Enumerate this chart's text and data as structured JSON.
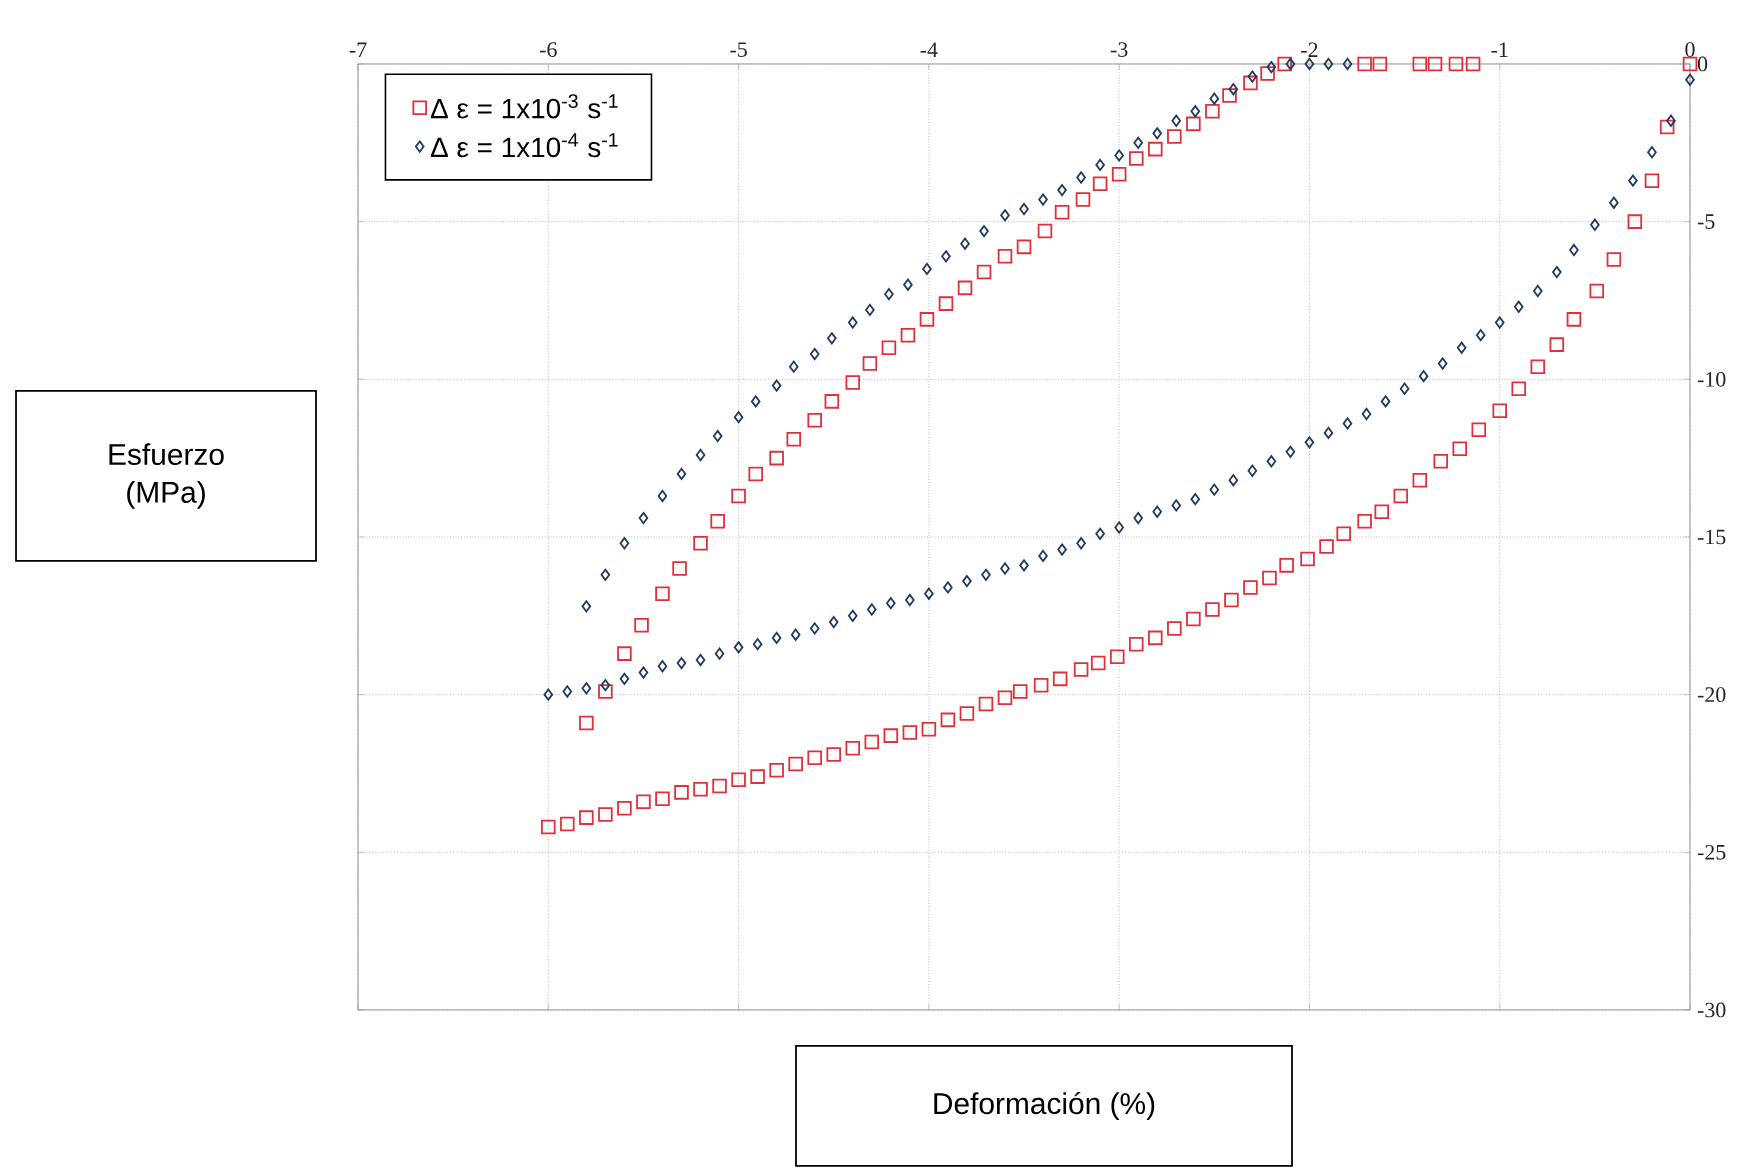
{
  "chart_data": {
    "type": "scatter",
    "xlabel": "Deformación (%)",
    "ylabel": "Esfuerzo (MPa)",
    "xlim": [
      -7,
      0
    ],
    "ylim": [
      -30,
      0
    ],
    "xticks": [
      -7,
      -6,
      -5,
      -4,
      -3,
      -2,
      -1,
      0
    ],
    "yticks": [
      -30,
      -25,
      -20,
      -15,
      -10,
      -5,
      0
    ],
    "grid": true,
    "legend": "top left",
    "series": [
      {
        "name": "Δ ε = 1x10$^{-3}$ s$^{-1}$",
        "color": "#e0303a",
        "marker": "square",
        "x": [
          0,
          -0.12,
          -0.2,
          -0.29,
          -0.4,
          -0.49,
          -0.61,
          -0.7,
          -0.8,
          -0.9,
          -1.0,
          -1.11,
          -1.21,
          -1.31,
          -1.42,
          -1.52,
          -1.62,
          -1.71,
          -1.82,
          -1.91,
          -2.01,
          -2.12,
          -2.21,
          -2.31,
          -2.41,
          -2.51,
          -2.61,
          -2.71,
          -2.81,
          -2.91,
          -3.01,
          -3.11,
          -3.2,
          -3.31,
          -3.41,
          -3.52,
          -3.6,
          -3.7,
          -3.8,
          -3.9,
          -4.0,
          -4.1,
          -4.2,
          -4.3,
          -4.4,
          -4.5,
          -4.6,
          -4.7,
          -4.8,
          -4.9,
          -5.0,
          -5.1,
          -5.2,
          -5.3,
          -5.4,
          -5.5,
          -5.6,
          -5.7,
          -5.8,
          -5.9,
          -6.0,
          -5.8,
          -5.7,
          -5.6,
          -5.51,
          -5.4,
          -5.31,
          -5.2,
          -5.11,
          -5.0,
          -4.91,
          -4.8,
          -4.71,
          -4.6,
          -4.51,
          -4.4,
          -4.31,
          -4.21,
          -4.11,
          -4.01,
          -3.91,
          -3.81,
          -3.71,
          -3.6,
          -3.5,
          -3.39,
          -3.3,
          -3.19,
          -3.1,
          -3.0,
          -2.91,
          -2.81,
          -2.71,
          -2.61,
          -2.51,
          -2.42,
          -2.31,
          -2.22,
          -2.13,
          -1.71,
          -1.63,
          -1.42,
          -1.34,
          -1.23,
          -1.14
        ],
        "values": [
          0,
          -2.0,
          -3.7,
          -5.0,
          -6.2,
          -7.2,
          -8.1,
          -8.9,
          -9.6,
          -10.3,
          -11.0,
          -11.6,
          -12.2,
          -12.6,
          -13.2,
          -13.7,
          -14.2,
          -14.5,
          -14.9,
          -15.3,
          -15.7,
          -15.9,
          -16.3,
          -16.6,
          -17.0,
          -17.3,
          -17.6,
          -17.9,
          -18.2,
          -18.4,
          -18.8,
          -19.0,
          -19.2,
          -19.5,
          -19.7,
          -19.9,
          -20.1,
          -20.3,
          -20.6,
          -20.8,
          -21.1,
          -21.2,
          -21.3,
          -21.5,
          -21.7,
          -21.9,
          -22.0,
          -22.2,
          -22.4,
          -22.6,
          -22.7,
          -22.9,
          -23.0,
          -23.1,
          -23.3,
          -23.4,
          -23.6,
          -23.8,
          -23.9,
          -24.1,
          -24.2,
          -20.9,
          -19.9,
          -18.7,
          -17.8,
          -16.8,
          -16.0,
          -15.2,
          -14.5,
          -13.7,
          -13.0,
          -12.5,
          -11.9,
          -11.3,
          -10.7,
          -10.1,
          -9.5,
          -9.0,
          -8.6,
          -8.1,
          -7.6,
          -7.1,
          -6.6,
          -6.1,
          -5.8,
          -5.3,
          -4.7,
          -4.3,
          -3.8,
          -3.5,
          -3.0,
          -2.7,
          -2.3,
          -1.9,
          -1.5,
          -1.0,
          -0.6,
          -0.3,
          0,
          0,
          0,
          0,
          0,
          0,
          0
        ]
      },
      {
        "name": "Δ ε = 1x10$^{-4}$ s$^{-1}$",
        "color": "#1f3a5f",
        "marker": "diamond",
        "x": [
          0,
          -0.1,
          -0.2,
          -0.3,
          -0.4,
          -0.5,
          -0.61,
          -0.7,
          -0.8,
          -0.9,
          -1.0,
          -1.1,
          -1.2,
          -1.3,
          -1.4,
          -1.5,
          -1.6,
          -1.7,
          -1.8,
          -1.9,
          -2.0,
          -2.1,
          -2.2,
          -2.3,
          -2.4,
          -2.5,
          -2.6,
          -2.7,
          -2.8,
          -2.9,
          -3.0,
          -3.1,
          -3.2,
          -3.3,
          -3.4,
          -3.5,
          -3.6,
          -3.7,
          -3.8,
          -3.9,
          -4.0,
          -4.1,
          -4.2,
          -4.3,
          -4.4,
          -4.5,
          -4.6,
          -4.7,
          -4.8,
          -4.9,
          -5.0,
          -5.1,
          -5.2,
          -5.3,
          -5.4,
          -5.5,
          -5.6,
          -5.7,
          -5.8,
          -5.9,
          -6.0,
          -5.8,
          -5.7,
          -5.6,
          -5.5,
          -5.4,
          -5.3,
          -5.2,
          -5.11,
          -5.0,
          -4.91,
          -4.8,
          -4.71,
          -4.6,
          -4.51,
          -4.4,
          -4.31,
          -4.21,
          -4.11,
          -4.01,
          -3.91,
          -3.81,
          -3.71,
          -3.6,
          -3.5,
          -3.4,
          -3.3,
          -3.2,
          -3.1,
          -3.0,
          -2.9,
          -2.8,
          -2.7,
          -2.6,
          -2.5,
          -2.4,
          -2.3,
          -2.2,
          -2.1,
          -2.0,
          -1.9,
          -1.8
        ],
        "values": [
          -0.5,
          -1.8,
          -2.8,
          -3.7,
          -4.4,
          -5.1,
          -5.9,
          -6.6,
          -7.2,
          -7.7,
          -8.2,
          -8.6,
          -9.0,
          -9.5,
          -9.9,
          -10.3,
          -10.7,
          -11.1,
          -11.4,
          -11.7,
          -12.0,
          -12.3,
          -12.6,
          -12.9,
          -13.2,
          -13.5,
          -13.8,
          -14.0,
          -14.2,
          -14.4,
          -14.7,
          -14.9,
          -15.2,
          -15.4,
          -15.6,
          -15.9,
          -16.0,
          -16.2,
          -16.4,
          -16.6,
          -16.8,
          -17.0,
          -17.1,
          -17.3,
          -17.5,
          -17.7,
          -17.9,
          -18.1,
          -18.2,
          -18.4,
          -18.5,
          -18.7,
          -18.9,
          -19.0,
          -19.1,
          -19.3,
          -19.5,
          -19.7,
          -19.8,
          -19.9,
          -20.0,
          -17.2,
          -16.2,
          -15.2,
          -14.4,
          -13.7,
          -13.0,
          -12.4,
          -11.8,
          -11.2,
          -10.7,
          -10.2,
          -9.6,
          -9.2,
          -8.7,
          -8.2,
          -7.8,
          -7.3,
          -7.0,
          -6.5,
          -6.1,
          -5.7,
          -5.3,
          -4.8,
          -4.6,
          -4.3,
          -4.0,
          -3.6,
          -3.2,
          -2.9,
          -2.5,
          -2.2,
          -1.8,
          -1.5,
          -1.1,
          -0.8,
          -0.4,
          -0.1,
          0,
          0,
          0,
          0
        ]
      }
    ]
  }
}
